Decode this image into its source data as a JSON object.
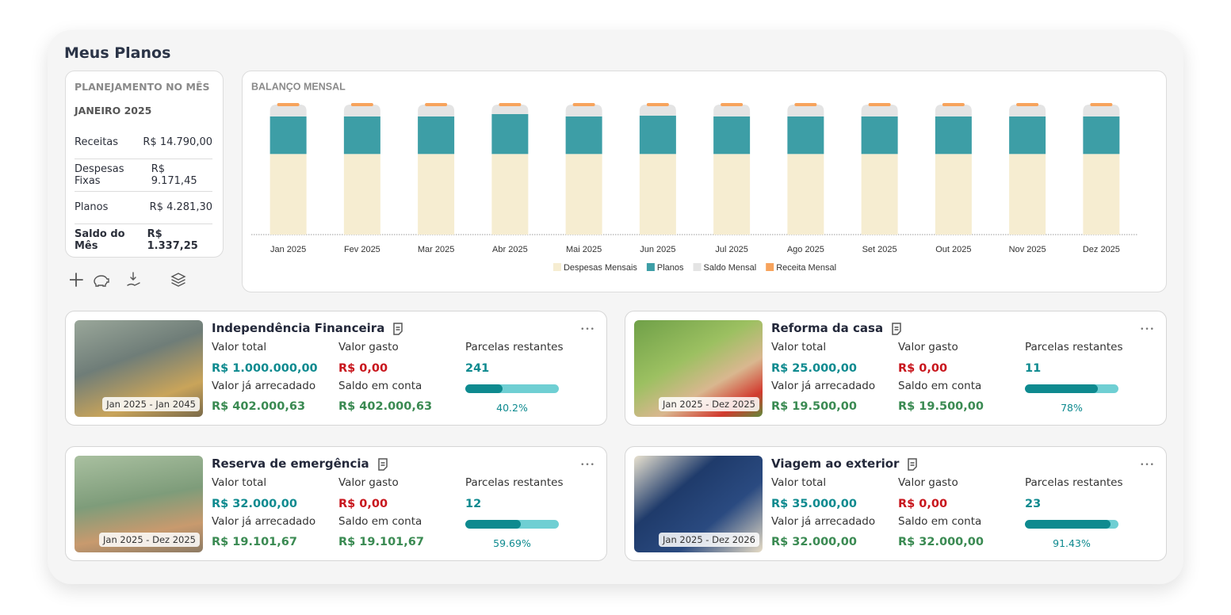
{
  "header": {
    "title": "Meus Planos"
  },
  "summary": {
    "title": "PLANEJAMENTO NO MÊS",
    "month": "JANEIRO 2025",
    "rows": [
      [
        "Receitas",
        "R$ 14.790,00"
      ],
      [
        "Despesas Fixas",
        "R$ 9.171,45"
      ],
      [
        "Planos",
        "R$ 4.281,30"
      ],
      [
        "Saldo do Mês",
        "R$ 1.337,25"
      ]
    ]
  },
  "chart_data": {
    "type": "bar",
    "stacked": true,
    "title": "BALANÇO MENSAL",
    "categories": [
      "Jan 2025",
      "Fev 2025",
      "Mar 2025",
      "Abr 2025",
      "Mai 2025",
      "Jun 2025",
      "Jul 2025",
      "Ago 2025",
      "Set 2025",
      "Out 2025",
      "Nov 2025",
      "Dez 2025"
    ],
    "series": [
      {
        "name": "Despesas Mensais",
        "color": "#f6edd1",
        "values": [
          9171.45,
          9171.45,
          9171.45,
          9171.45,
          9171.45,
          9171.45,
          9171.45,
          9171.45,
          9171.45,
          9171.45,
          9171.45,
          9171.45
        ]
      },
      {
        "name": "Planos",
        "color": "#3d9ea6",
        "values": [
          4281.3,
          4281.3,
          4281.3,
          4550,
          4281.3,
          4370,
          4281.3,
          4281.3,
          4281.3,
          4281.3,
          4281.3,
          4281.3
        ]
      },
      {
        "name": "Saldo Mensal",
        "color": "#e4e4e4",
        "values": [
          1337.25,
          1337.25,
          1337.25,
          1070,
          1337.25,
          1250,
          1337.25,
          1337.25,
          1337.25,
          1337.25,
          1337.25,
          1337.25
        ]
      },
      {
        "name": "Receita Mensal",
        "color": "#f7a35c",
        "style": "marker",
        "values": [
          14790,
          14790,
          14790,
          14790,
          14790,
          14790,
          14790,
          14790,
          14790,
          14790,
          14790,
          14790
        ]
      }
    ],
    "legend": "bottom"
  },
  "plans": [
    {
      "name": "Independência Financeira",
      "period": "Jan 2025 - Jan 2045",
      "total_label": "Valor total",
      "total": "R$ 1.000.000,00",
      "spent_label": "Valor gasto",
      "spent": "R$ 0,00",
      "installments_label": "Parcelas restantes",
      "installments": "241",
      "raised_label": "Valor já arrecadado",
      "raised": "R$ 402.000,63",
      "balance_label": "Saldo em conta",
      "balance": "R$ 402.000,63",
      "progress": {
        "value": 40.2,
        "label": "40.2%"
      }
    },
    {
      "name": "Reforma da casa",
      "period": "Jan 2025 - Dez 2025",
      "total_label": "Valor total",
      "total": "R$ 25.000,00",
      "spent_label": "Valor gasto",
      "spent": "R$ 0,00",
      "installments_label": "Parcelas restantes",
      "installments": "11",
      "raised_label": "Valor já arrecadado",
      "raised": "R$ 19.500,00",
      "balance_label": "Saldo em conta",
      "balance": "R$ 19.500,00",
      "progress": {
        "value": 78,
        "label": "78%"
      }
    },
    {
      "name": "Reserva de emergência",
      "period": "Jan 2025 - Dez 2025",
      "total_label": "Valor total",
      "total": "R$ 32.000,00",
      "spent_label": "Valor gasto",
      "spent": "R$ 0,00",
      "installments_label": "Parcelas restantes",
      "installments": "12",
      "raised_label": "Valor já arrecadado",
      "raised": "R$ 19.101,67",
      "balance_label": "Saldo em conta",
      "balance": "R$ 19.101,67",
      "progress": {
        "value": 59.69,
        "label": "59.69%"
      }
    },
    {
      "name": "Viagem ao exterior",
      "period": "Jan 2025 - Dez 2026",
      "total_label": "Valor total",
      "total": "R$ 35.000,00",
      "spent_label": "Valor gasto",
      "spent": "R$ 0,00",
      "installments_label": "Parcelas restantes",
      "installments": "23",
      "raised_label": "Valor já arrecadado",
      "raised": "R$ 32.000,00",
      "balance_label": "Saldo em conta",
      "balance": "R$ 32.000,00",
      "progress": {
        "value": 91.43,
        "label": "91.43%"
      }
    }
  ]
}
